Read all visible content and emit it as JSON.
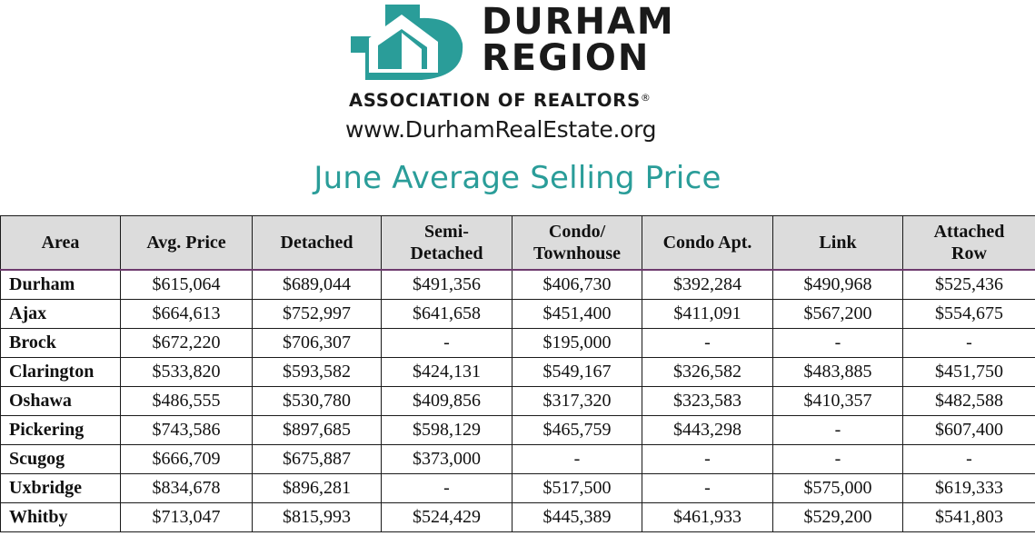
{
  "header": {
    "logo_line1": "DURHAM",
    "logo_line2": "REGION",
    "association": "ASSOCIATION OF REALTORS",
    "registered_mark": "®",
    "website": "www.DurhamRealEstate.org",
    "title": "June Average Selling Price"
  },
  "colors": {
    "accent_teal": "#2a9d99",
    "header_bg": "#dcdcdc",
    "header_rule": "#6e3a6e"
  },
  "table": {
    "columns": [
      [
        "Area"
      ],
      [
        "Avg. Price"
      ],
      [
        "Detached"
      ],
      [
        "Semi-",
        "Detached"
      ],
      [
        "Condo/",
        "Townhouse"
      ],
      [
        "Condo Apt."
      ],
      [
        "Link"
      ],
      [
        "Attached",
        "Row"
      ]
    ],
    "rows": [
      [
        "Durham",
        "$615,064",
        "$689,044",
        "$491,356",
        "$406,730",
        "$392,284",
        "$490,968",
        "$525,436"
      ],
      [
        "Ajax",
        "$664,613",
        "$752,997",
        "$641,658",
        "$451,400",
        "$411,091",
        "$567,200",
        "$554,675"
      ],
      [
        "Brock",
        "$672,220",
        "$706,307",
        "-",
        "$195,000",
        "-",
        "-",
        "-"
      ],
      [
        "Clarington",
        "$533,820",
        "$593,582",
        "$424,131",
        "$549,167",
        "$326,582",
        "$483,885",
        "$451,750"
      ],
      [
        "Oshawa",
        "$486,555",
        "$530,780",
        "$409,856",
        "$317,320",
        "$323,583",
        "$410,357",
        "$482,588"
      ],
      [
        "Pickering",
        "$743,586",
        "$897,685",
        "$598,129",
        "$465,759",
        "$443,298",
        "-",
        "$607,400"
      ],
      [
        "Scugog",
        "$666,709",
        "$675,887",
        "$373,000",
        "-",
        "-",
        "-",
        "-"
      ],
      [
        "Uxbridge",
        "$834,678",
        "$896,281",
        "-",
        "$517,500",
        "-",
        "$575,000",
        "$619,333"
      ],
      [
        "Whitby",
        "$713,047",
        "$815,993",
        "$524,429",
        "$445,389",
        "$461,933",
        "$529,200",
        "$541,803"
      ]
    ]
  }
}
